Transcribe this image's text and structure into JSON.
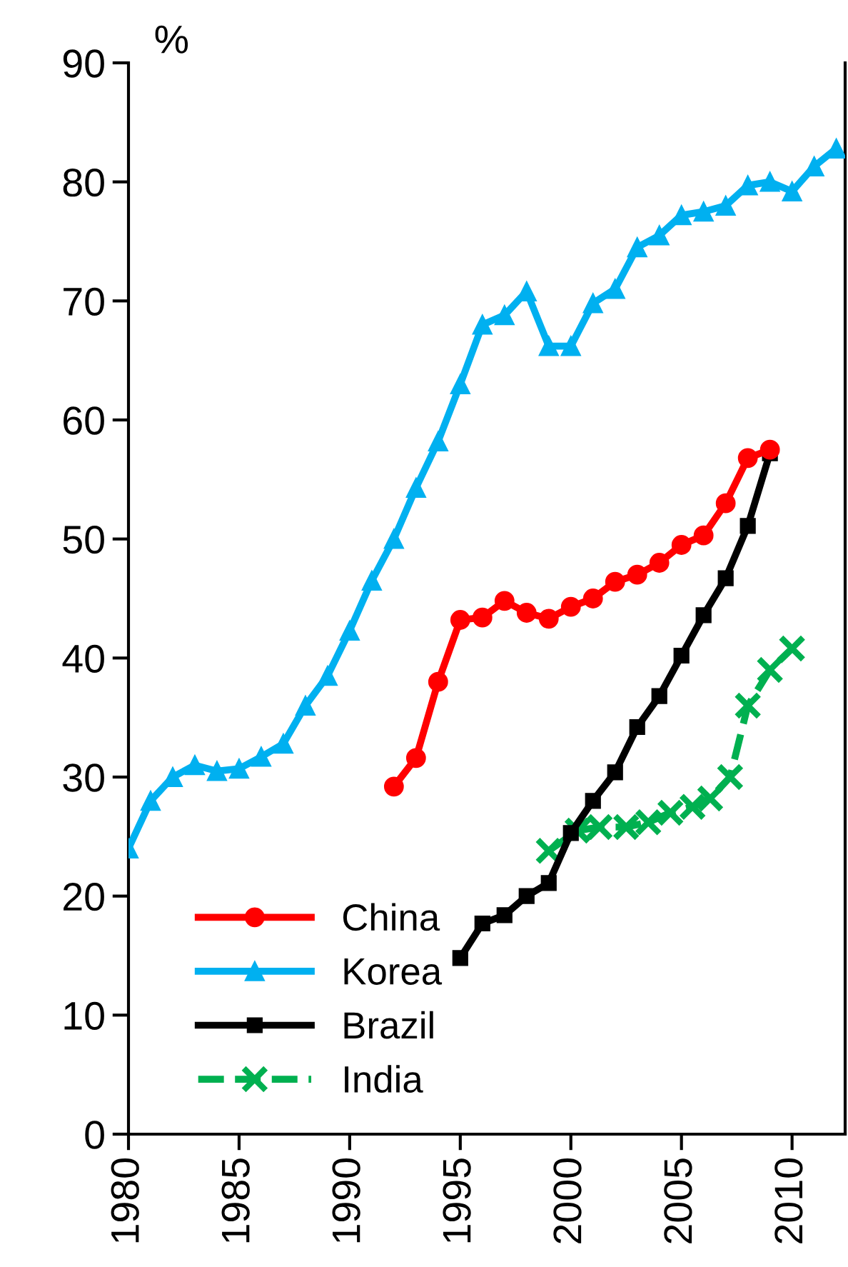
{
  "chart_data": {
    "type": "line",
    "ylabel": "%",
    "xlim": [
      1980,
      2012.4
    ],
    "xticks": [
      1980,
      1985,
      1990,
      1995,
      2000,
      2005,
      2010
    ],
    "ylim": [
      0,
      90
    ],
    "yticks": [
      0,
      10,
      20,
      30,
      40,
      50,
      60,
      70,
      80,
      90
    ],
    "grid": false,
    "legend": "bottom left",
    "series": [
      {
        "name": "China",
        "color": "#ff0000",
        "marker": "circle",
        "line_style": "solid",
        "x": [
          1992,
          1993,
          1994,
          1995,
          1996,
          1997,
          1998,
          1999,
          2000,
          2001,
          2002,
          2003,
          2004,
          2005,
          2006,
          2007,
          2008,
          2009
        ],
        "values": [
          29.2,
          31.6,
          38,
          43.2,
          43.4,
          44.8,
          43.8,
          43.3,
          44.3,
          45,
          46.4,
          47,
          48,
          49.5,
          50.3,
          53,
          56.8,
          57.5
        ]
      },
      {
        "name": "Korea",
        "color": "#00b0f0",
        "marker": "triangle",
        "line_style": "solid",
        "x": [
          1980,
          1981,
          1982,
          1983,
          1984,
          1985,
          1986,
          1987,
          1988,
          1989,
          1990,
          1991,
          1992,
          1993,
          1994,
          1995,
          1996,
          1997,
          1998,
          1999,
          2000,
          2001,
          2002,
          2003,
          2004,
          2005,
          2006,
          2007,
          2008,
          2009,
          2010,
          2011,
          2012
        ],
        "values": [
          24,
          28,
          30,
          31,
          30.5,
          30.7,
          31.7,
          32.8,
          36,
          38.5,
          42.3,
          46.5,
          50,
          54.3,
          58.2,
          63,
          68,
          68.8,
          70.8,
          66.2,
          66.2,
          69.8,
          71,
          74.5,
          75.5,
          77.2,
          77.5,
          78,
          79.7,
          80,
          79.2,
          81.3,
          82.8
        ]
      },
      {
        "name": "Brazil",
        "color": "#000000",
        "marker": "square",
        "line_style": "solid",
        "x": [
          1995,
          1996,
          1997,
          1998,
          1999,
          2000,
          2001,
          2002,
          2003,
          2004,
          2005,
          2006,
          2007,
          2008,
          2009
        ],
        "values": [
          14.8,
          17.7,
          18.4,
          20,
          21.1,
          25.3,
          28,
          30.4,
          34.2,
          36.8,
          40.2,
          43.6,
          46.7,
          51.1,
          57.2
        ]
      },
      {
        "name": "India",
        "color": "#00b050",
        "marker": "cross",
        "line_style": "dashed",
        "x": [
          1999,
          2000.3,
          2001.3,
          2002.5,
          2003.5,
          2004.5,
          2005.5,
          2006.3,
          2007.2,
          2008,
          2009,
          2010
        ],
        "values": [
          23.8,
          25.5,
          25.8,
          25.8,
          26.2,
          27,
          27.5,
          28.2,
          30,
          36,
          39,
          40.8
        ]
      }
    ]
  }
}
